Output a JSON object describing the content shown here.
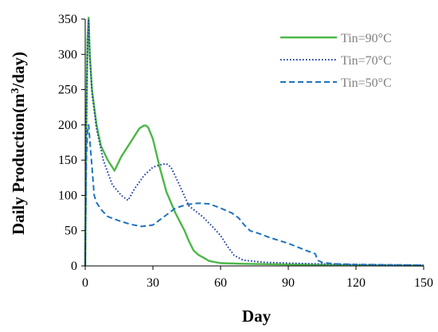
{
  "chart_data": {
    "type": "line",
    "xlabel": "Day",
    "ylabel": {
      "main": "Daily Production(m",
      "sup": "3",
      "tail": "/day)"
    },
    "xlim": [
      0,
      150
    ],
    "ylim": [
      0,
      350
    ],
    "xticks": [
      "0",
      "30",
      "60",
      "90",
      "120",
      "150"
    ],
    "yticks": [
      "0",
      "50",
      "100",
      "150",
      "200",
      "250",
      "300",
      "350"
    ],
    "grid": false,
    "legend_position": "top-right",
    "series": [
      {
        "name": "Tin=90°C",
        "color": "#4cb848",
        "dash": "solid",
        "x": [
          0,
          0.5,
          1,
          1.5,
          2,
          3,
          5,
          7,
          10,
          13,
          16,
          20,
          24,
          26,
          27,
          28,
          30,
          33,
          36,
          40,
          44,
          46,
          48,
          50,
          55,
          60,
          70,
          90,
          120,
          150
        ],
        "y": [
          0,
          200,
          320,
          352,
          300,
          250,
          200,
          170,
          150,
          135,
          155,
          175,
          195,
          199,
          199,
          196,
          180,
          140,
          105,
          75,
          50,
          35,
          22,
          16,
          7,
          4,
          3,
          2,
          1,
          0.5
        ]
      },
      {
        "name": "Tin=70°C",
        "color": "#1f3fa6",
        "dash": "dotted",
        "x": [
          0,
          0.5,
          1,
          1.5,
          2,
          3,
          5,
          8,
          12,
          16,
          19,
          22,
          26,
          30,
          34,
          36,
          38,
          41,
          46,
          52,
          56,
          60,
          63,
          66,
          70,
          80,
          100,
          120,
          150
        ],
        "y": [
          0,
          200,
          300,
          348,
          300,
          245,
          195,
          150,
          115,
          100,
          93,
          110,
          128,
          140,
          144,
          145,
          140,
          120,
          85,
          70,
          57,
          43,
          28,
          15,
          8,
          5,
          3,
          2,
          1
        ]
      },
      {
        "name": "Tin=50°C",
        "color": "#1e73be",
        "dash": "dashed",
        "x": [
          0,
          0.5,
          1,
          1.5,
          2,
          3,
          4,
          5,
          7,
          10,
          15,
          20,
          25,
          30,
          35,
          40,
          45,
          50,
          55,
          60,
          65,
          68,
          70,
          73,
          77,
          82,
          90,
          97,
          102,
          103,
          105,
          110,
          120,
          150
        ],
        "y": [
          0,
          150,
          190,
          200,
          180,
          140,
          100,
          90,
          80,
          70,
          64,
          59,
          56,
          58,
          70,
          82,
          87,
          89,
          88,
          82,
          75,
          68,
          60,
          50,
          46,
          40,
          32,
          23,
          17,
          8,
          5,
          3,
          2,
          1
        ]
      }
    ]
  }
}
